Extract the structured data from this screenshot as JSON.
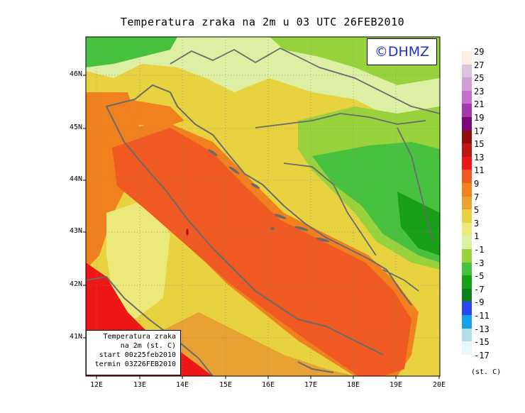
{
  "title": "Temperatura zraka na 2m u 03 UTC 26FEB2010",
  "copyright": "©DHMZ",
  "info_box": {
    "line1": "Temperatura zraka",
    "line2": "na 2m (st. C)",
    "line3": "start 00z25feb2010",
    "line4": "termin 03Z26FEB2010"
  },
  "lat_labels": [
    {
      "label": "46N",
      "lat": 46
    },
    {
      "label": "45N",
      "lat": 45
    },
    {
      "label": "44N",
      "lat": 44
    },
    {
      "label": "43N",
      "lat": 43
    },
    {
      "label": "42N",
      "lat": 42
    },
    {
      "label": "41N",
      "lat": 41
    }
  ],
  "lon_labels": [
    {
      "label": "12E",
      "lon": 12
    },
    {
      "label": "13E",
      "lon": 13
    },
    {
      "label": "14E",
      "lon": 14
    },
    {
      "label": "15E",
      "lon": 15
    },
    {
      "label": "16E",
      "lon": 16
    },
    {
      "label": "17E",
      "lon": 17
    },
    {
      "label": "18E",
      "lon": 18
    },
    {
      "label": "19E",
      "lon": 19
    },
    {
      "label": "20E",
      "lon": 20
    }
  ],
  "legend": {
    "units": "(st. C)",
    "levels": [
      {
        "label": "29",
        "color": "#fbefe3"
      },
      {
        "label": "27",
        "color": "#dcc3dc"
      },
      {
        "label": "25",
        "color": "#d39ed6"
      },
      {
        "label": "23",
        "color": "#c46fcb"
      },
      {
        "label": "21",
        "color": "#a23aae"
      },
      {
        "label": "19",
        "color": "#7a0a7a"
      },
      {
        "label": "17",
        "color": "#8f0f10"
      },
      {
        "label": "15",
        "color": "#be1515"
      },
      {
        "label": "13",
        "color": "#ef1616"
      },
      {
        "label": "11",
        "color": "#f05a22"
      },
      {
        "label": "9",
        "color": "#f0811e"
      },
      {
        "label": "7",
        "color": "#e8a133"
      },
      {
        "label": "5",
        "color": "#e8d23f"
      },
      {
        "label": "3",
        "color": "#ebe97a"
      },
      {
        "label": "1",
        "color": "#dcefa2"
      },
      {
        "label": "-1",
        "color": "#98d23c"
      },
      {
        "label": "-3",
        "color": "#48c140"
      },
      {
        "label": "-5",
        "color": "#18a018"
      },
      {
        "label": "-7",
        "color": "#0d7f1e"
      },
      {
        "label": "-9",
        "color": "#2b46f0"
      },
      {
        "label": "-11",
        "color": "#17a1e8"
      },
      {
        "label": "-13",
        "color": "#b2dee8"
      },
      {
        "label": "-15",
        "color": "#e8f8f8"
      },
      {
        "label": "-17",
        "color": "#ffffff"
      }
    ]
  },
  "map": {
    "lon_range": [
      11.75,
      20
    ],
    "lat_range": [
      40.25,
      46.75
    ],
    "land_color": "#e8d23f",
    "sea_color": "#f05a22",
    "sea_edge_color": "#f0811e",
    "hot_color": "#ef1616",
    "cold_colors": [
      "#98d23c",
      "#48c140",
      "#18a018"
    ],
    "coast_color": "#6b6b6b"
  }
}
